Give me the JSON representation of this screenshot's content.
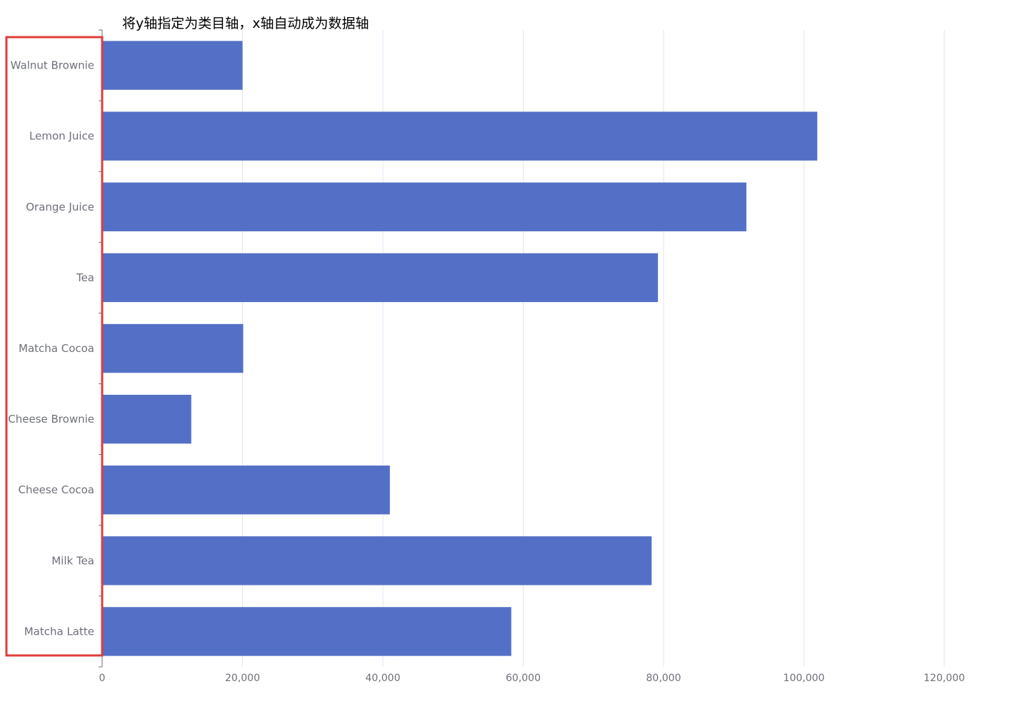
{
  "caption": "将y轴指定为类目轴，x轴自动成为数据轴",
  "colors": {
    "bar": "#5470c6",
    "axis": "#6e7079",
    "grid": "#e0e6f1",
    "highlight_box": "#e03c3c",
    "caption": "#000000"
  },
  "chart_data": {
    "type": "bar",
    "orientation": "horizontal",
    "categories": [
      "Walnut Brownie",
      "Lemon Juice",
      "Orange Juice",
      "Tea",
      "Matcha Cocoa",
      "Cheese Brownie",
      "Cheese Cocoa",
      "Milk Tea",
      "Matcha Latte"
    ],
    "values": [
      20000,
      101900,
      91800,
      79200,
      20100,
      12700,
      41000,
      78300,
      58300
    ],
    "x_ticks": [
      0,
      20000,
      40000,
      60000,
      80000,
      100000,
      120000
    ],
    "x_tick_labels": [
      "0",
      "20,000",
      "40,000",
      "60,000",
      "80,000",
      "100,000",
      "120,000"
    ],
    "xlim": [
      0,
      120000
    ],
    "title": "",
    "xlabel": "",
    "ylabel": "",
    "grid": "vertical",
    "legend": "none",
    "highlight": "y-axis category labels outlined with a red box"
  }
}
